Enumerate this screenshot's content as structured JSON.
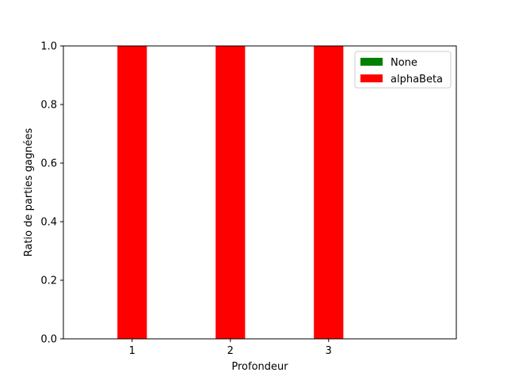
{
  "chart_data": {
    "type": "bar",
    "categories": [
      "1",
      "2",
      "3"
    ],
    "series": [
      {
        "name": "None",
        "color": "#008000",
        "values": [
          0,
          0,
          0
        ]
      },
      {
        "name": "alphaBeta",
        "color": "#ff0000",
        "values": [
          1.0,
          1.0,
          1.0
        ]
      }
    ],
    "extra_zero_bars": true,
    "title": "",
    "xlabel": "Profondeur",
    "ylabel": "Ratio de parties gagnées",
    "ylim": [
      0,
      1.0
    ],
    "yticks": [
      "0.0",
      "0.2",
      "0.4",
      "0.6",
      "0.8",
      "1.0"
    ],
    "grid": false,
    "legend_position": "upper right"
  }
}
